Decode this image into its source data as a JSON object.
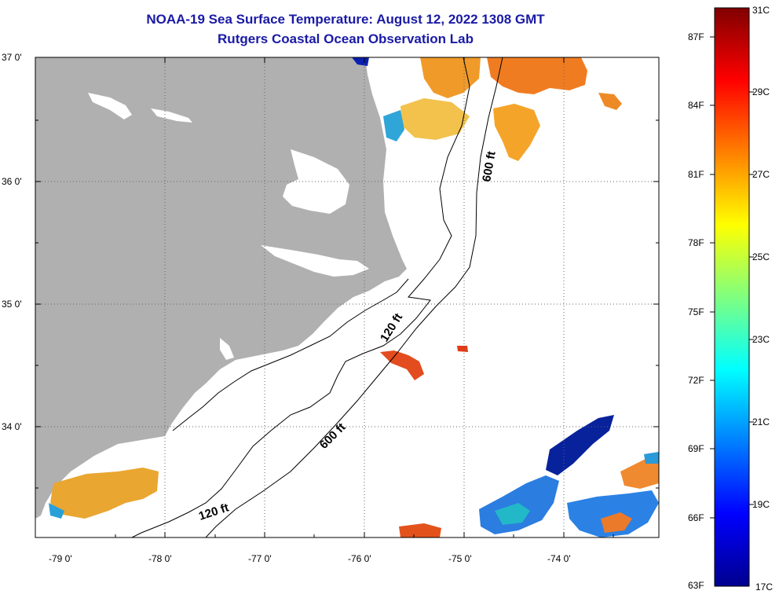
{
  "header": {
    "title_line1": "NOAA-19 Sea Surface Temperature:  August 12, 2022 1308 GMT",
    "title_line2": "Rutgers Coastal Ocean Observation Lab"
  },
  "map": {
    "lat_labels": [
      "37 0'",
      "36 0'",
      "35 0'",
      "34 0'"
    ],
    "lon_labels": [
      "-79 0'",
      "-78 0'",
      "-77 0'",
      "-76 0'",
      "-75 0'",
      "-74 0'"
    ],
    "depth_contours": [
      {
        "label": "600 ft"
      },
      {
        "label": "120 ft"
      },
      {
        "label": "600 ft"
      },
      {
        "label": "120 ft"
      }
    ],
    "colors": {
      "land": "#b0b0b0",
      "water_nodata": "#ffffff",
      "title": "#1a1aa6"
    }
  },
  "colorbar": {
    "fahrenheit_labels": [
      "87F",
      "84F",
      "81F",
      "78F",
      "75F",
      "72F",
      "69F",
      "66F",
      "63F"
    ],
    "celsius_labels": [
      "31C",
      "29C",
      "27C",
      "25C",
      "23C",
      "21C",
      "19C",
      "17C"
    ],
    "range_celsius": [
      17,
      31
    ],
    "colormap": "jet"
  }
}
